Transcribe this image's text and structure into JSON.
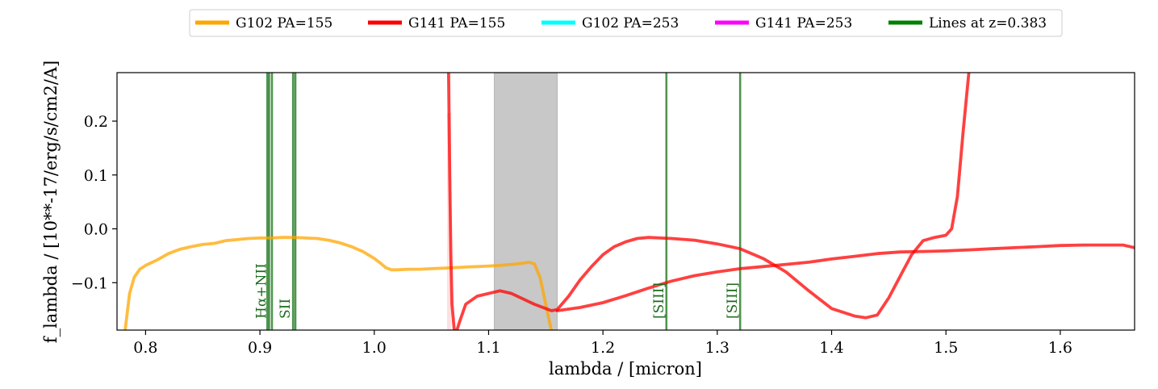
{
  "chart_data": {
    "type": "line",
    "xlabel": "lambda / [micron]",
    "ylabel": "f_lambda / [10**-17/erg/s/cm2/A]",
    "xlim": [
      0.775,
      1.665
    ],
    "ylim": [
      -0.188,
      0.29
    ],
    "xticks": [
      {
        "value": 0.8,
        "label": "0.8"
      },
      {
        "value": 0.9,
        "label": "0.9"
      },
      {
        "value": 1.0,
        "label": "1.0"
      },
      {
        "value": 1.1,
        "label": "1.1"
      },
      {
        "value": 1.2,
        "label": "1.2"
      },
      {
        "value": 1.3,
        "label": "1.3"
      },
      {
        "value": 1.4,
        "label": "1.4"
      },
      {
        "value": 1.5,
        "label": "1.5"
      },
      {
        "value": 1.6,
        "label": "1.6"
      }
    ],
    "yticks": [
      {
        "value": -0.1,
        "label": "−0.1"
      },
      {
        "value": 0.0,
        "label": "0.0"
      },
      {
        "value": 0.1,
        "label": "0.1"
      },
      {
        "value": 0.2,
        "label": "0.2"
      }
    ],
    "grid": false,
    "legend_position": "top-center",
    "shaded_region": {
      "x": [
        1.105,
        1.16
      ],
      "color": "#c8c8c8"
    },
    "legend": [
      {
        "label": "G102 PA=155",
        "color": "#ffa500"
      },
      {
        "label": "G141 PA=155",
        "color": "#ff0000"
      },
      {
        "label": "G102 PA=253",
        "color": "#00ffff"
      },
      {
        "label": "G141 PA=253",
        "color": "#ff00ff"
      },
      {
        "label": "Lines at z=0.383",
        "color": "#008000"
      }
    ],
    "series": [
      {
        "name": "G102 PA=155",
        "color": "#ffa500",
        "x": [
          0.782,
          0.786,
          0.79,
          0.795,
          0.8,
          0.81,
          0.82,
          0.83,
          0.84,
          0.85,
          0.86,
          0.87,
          0.88,
          0.89,
          0.9,
          0.91,
          0.92,
          0.93,
          0.94,
          0.95,
          0.96,
          0.97,
          0.98,
          0.99,
          1.0,
          1.005,
          1.01,
          1.015,
          1.02,
          1.03,
          1.04,
          1.05,
          1.06,
          1.07,
          1.08,
          1.09,
          1.1,
          1.11,
          1.12,
          1.13,
          1.135,
          1.14,
          1.145,
          1.15,
          1.155,
          1.16
        ],
        "y": [
          -0.19,
          -0.12,
          -0.09,
          -0.075,
          -0.068,
          -0.058,
          -0.046,
          -0.038,
          -0.033,
          -0.029,
          -0.027,
          -0.022,
          -0.02,
          -0.018,
          -0.017,
          -0.017,
          -0.016,
          -0.016,
          -0.017,
          -0.018,
          -0.021,
          -0.026,
          -0.033,
          -0.042,
          -0.055,
          -0.063,
          -0.072,
          -0.076,
          -0.076,
          -0.075,
          -0.075,
          -0.074,
          -0.073,
          -0.072,
          -0.071,
          -0.07,
          -0.069,
          -0.068,
          -0.066,
          -0.064,
          -0.062,
          -0.065,
          -0.09,
          -0.14,
          -0.19,
          -0.19
        ]
      },
      {
        "name": "G141 PA=155",
        "color": "#ff0000",
        "x": [
          1.065,
          1.066,
          1.067,
          1.068,
          1.07,
          1.072,
          1.075,
          1.08,
          1.09,
          1.1,
          1.11,
          1.12,
          1.13,
          1.14,
          1.15,
          1.155,
          1.16,
          1.17,
          1.18,
          1.19,
          1.2,
          1.21,
          1.22,
          1.23,
          1.24,
          1.25,
          1.26,
          1.28,
          1.3,
          1.32,
          1.34,
          1.36,
          1.38,
          1.4,
          1.42,
          1.43,
          1.44,
          1.45,
          1.46,
          1.47,
          1.48,
          1.49,
          1.5,
          1.505,
          1.51,
          1.515,
          1.52
        ],
        "y": [
          0.29,
          0.1,
          -0.05,
          -0.14,
          -0.19,
          -0.19,
          -0.17,
          -0.14,
          -0.125,
          -0.12,
          -0.115,
          -0.12,
          -0.13,
          -0.14,
          -0.148,
          -0.152,
          -0.15,
          -0.125,
          -0.095,
          -0.07,
          -0.048,
          -0.033,
          -0.024,
          -0.018,
          -0.016,
          -0.017,
          -0.018,
          -0.021,
          -0.028,
          -0.037,
          -0.055,
          -0.08,
          -0.115,
          -0.148,
          -0.162,
          -0.165,
          -0.16,
          -0.128,
          -0.088,
          -0.048,
          -0.022,
          -0.016,
          -0.012,
          0.0,
          0.06,
          0.18,
          0.29
        ]
      },
      {
        "name": "G141 PA=155",
        "color": "#ff0000",
        "x": [
          1.16,
          1.18,
          1.2,
          1.22,
          1.24,
          1.26,
          1.28,
          1.3,
          1.32,
          1.34,
          1.36,
          1.38,
          1.4,
          1.42,
          1.44,
          1.46,
          1.48,
          1.5,
          1.52,
          1.54,
          1.56,
          1.58,
          1.6,
          1.62,
          1.64,
          1.655,
          1.665
        ],
        "y": [
          -0.152,
          -0.146,
          -0.137,
          -0.124,
          -0.11,
          -0.097,
          -0.087,
          -0.08,
          -0.074,
          -0.07,
          -0.066,
          -0.062,
          -0.056,
          -0.051,
          -0.046,
          -0.043,
          -0.042,
          -0.041,
          -0.039,
          -0.037,
          -0.035,
          -0.033,
          -0.031,
          -0.03,
          -0.03,
          -0.03,
          -0.035
        ]
      }
    ],
    "emission_lines": [
      {
        "x": 0.9065,
        "label": ""
      },
      {
        "x": 0.908,
        "label": "Hα+NII"
      },
      {
        "x": 0.9105,
        "label": ""
      },
      {
        "x": 0.929,
        "label": "SII"
      },
      {
        "x": 0.931,
        "label": ""
      },
      {
        "x": 1.2555,
        "label": "[SIII]"
      },
      {
        "x": 1.32,
        "label": "[SIII]"
      }
    ]
  }
}
